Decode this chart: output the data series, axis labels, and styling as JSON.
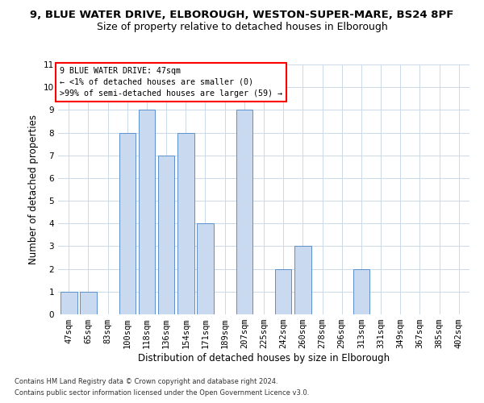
{
  "title1": "9, BLUE WATER DRIVE, ELBOROUGH, WESTON-SUPER-MARE, BS24 8PF",
  "title2": "Size of property relative to detached houses in Elborough",
  "xlabel": "Distribution of detached houses by size in Elborough",
  "ylabel": "Number of detached properties",
  "categories": [
    "47sqm",
    "65sqm",
    "83sqm",
    "100sqm",
    "118sqm",
    "136sqm",
    "154sqm",
    "171sqm",
    "189sqm",
    "207sqm",
    "225sqm",
    "242sqm",
    "260sqm",
    "278sqm",
    "296sqm",
    "313sqm",
    "331sqm",
    "349sqm",
    "367sqm",
    "385sqm",
    "402sqm"
  ],
  "values": [
    1,
    1,
    0,
    8,
    9,
    7,
    8,
    4,
    0,
    9,
    0,
    2,
    3,
    0,
    0,
    2,
    0,
    0,
    0,
    0,
    0
  ],
  "bar_color": "#c9d9f0",
  "bar_edge_color": "#5b8fcc",
  "ylim": [
    0,
    11
  ],
  "yticks": [
    0,
    1,
    2,
    3,
    4,
    5,
    6,
    7,
    8,
    9,
    10,
    11
  ],
  "annotation_title": "9 BLUE WATER DRIVE: 47sqm",
  "annotation_line1": "← <1% of detached houses are smaller (0)",
  "annotation_line2": ">99% of semi-detached houses are larger (59) →",
  "footer1": "Contains HM Land Registry data © Crown copyright and database right 2024.",
  "footer2": "Contains public sector information licensed under the Open Government Licence v3.0.",
  "bg_color": "#ffffff",
  "grid_color": "#ccd9e8",
  "title1_fontsize": 9.5,
  "title2_fontsize": 9,
  "axis_fontsize": 8.5,
  "tick_fontsize": 7.5,
  "footer_fontsize": 6.0
}
